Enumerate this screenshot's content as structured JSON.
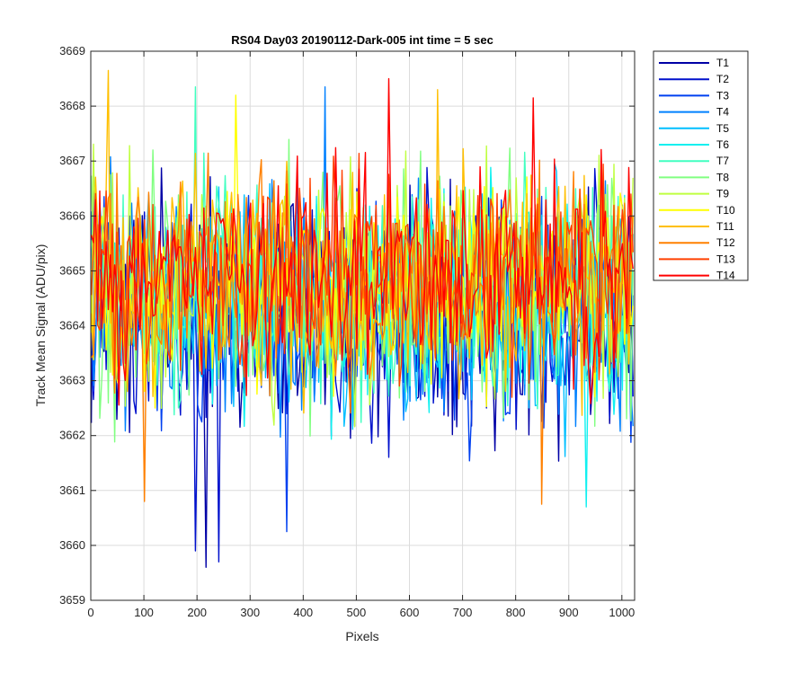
{
  "chart_data": {
    "type": "line",
    "title": "RS04 Day03 20190112-Dark-005 int time = 5 sec",
    "xlabel": "Pixels",
    "ylabel": "Track Mean Signal (ADU/pix)",
    "xlim": [
      0,
      1024
    ],
    "ylim": [
      3659,
      3669
    ],
    "xticks": [
      0,
      100,
      200,
      300,
      400,
      500,
      600,
      700,
      800,
      900,
      1000
    ],
    "yticks": [
      3659,
      3660,
      3661,
      3662,
      3663,
      3664,
      3665,
      3666,
      3667,
      3668,
      3669
    ],
    "grid": true,
    "legend_position": "outside-top-right",
    "x_start": 1,
    "x_step": 4,
    "n_points": 256,
    "series": [
      {
        "name": "T1",
        "color": "#0000A6",
        "mean": 3664.1,
        "spread": 1.5,
        "extreme_low": [
          [
            216,
            3659.6
          ]
        ]
      },
      {
        "name": "T2",
        "color": "#0010CC",
        "mean": 3664.2,
        "spread": 1.5,
        "extreme_low": [
          [
            197,
            3659.9
          ],
          [
            240,
            3659.7
          ]
        ]
      },
      {
        "name": "T3",
        "color": "#0040F0",
        "mean": 3664.3,
        "spread": 1.45,
        "extreme_low": [
          [
            370,
            3660.25
          ]
        ]
      },
      {
        "name": "T4",
        "color": "#0080FF",
        "mean": 3664.4,
        "spread": 1.45,
        "extreme_high": [
          [
            443,
            3668.35
          ]
        ]
      },
      {
        "name": "T5",
        "color": "#00BFFF",
        "mean": 3664.5,
        "spread": 1.4
      },
      {
        "name": "T6",
        "color": "#10F0F0",
        "mean": 3664.55,
        "spread": 1.4,
        "extreme_low": [
          [
            935,
            3660.7
          ]
        ]
      },
      {
        "name": "T7",
        "color": "#40FFC0",
        "mean": 3664.6,
        "spread": 1.4,
        "extreme_high": [
          [
            196,
            3668.35
          ]
        ]
      },
      {
        "name": "T8",
        "color": "#80FF80",
        "mean": 3664.65,
        "spread": 1.4
      },
      {
        "name": "T9",
        "color": "#BFFF40",
        "mean": 3664.7,
        "spread": 1.4
      },
      {
        "name": "T10",
        "color": "#FFFF00",
        "mean": 3664.75,
        "spread": 1.35,
        "extreme_high": [
          [
            275,
            3668.2
          ]
        ]
      },
      {
        "name": "T11",
        "color": "#FFBF00",
        "mean": 3664.8,
        "spread": 1.35,
        "extreme_high": [
          [
            35,
            3668.65
          ],
          [
            655,
            3668.3
          ]
        ]
      },
      {
        "name": "T12",
        "color": "#FF8000",
        "mean": 3664.85,
        "spread": 1.35,
        "extreme_low": [
          [
            848,
            3660.75
          ],
          [
            101,
            3660.8
          ]
        ]
      },
      {
        "name": "T13",
        "color": "#FF4000",
        "mean": 3664.9,
        "spread": 1.3
      },
      {
        "name": "T14",
        "color": "#FF0000",
        "mean": 3664.95,
        "spread": 1.3,
        "extreme_high": [
          [
            560,
            3668.5
          ],
          [
            835,
            3668.15
          ]
        ]
      }
    ]
  }
}
